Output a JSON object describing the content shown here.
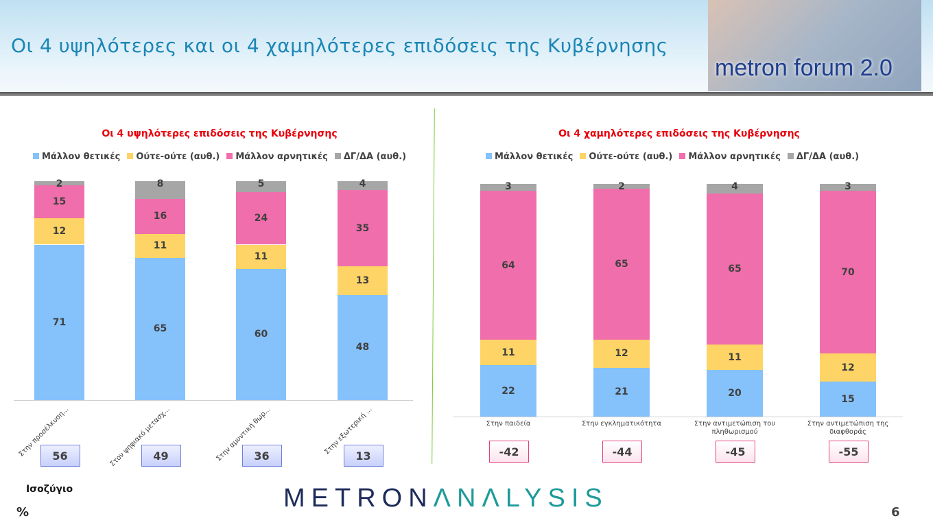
{
  "header": {
    "title": "Οι 4 υψηλότερες και οι 4 χαμηλότερες επιδόσεις της Κυβέρνησης",
    "logo_text": "metron forum 2.0"
  },
  "colors": {
    "positive": "#85c1fb",
    "neutral": "#fed466",
    "negative": "#f06eab",
    "dk": "#a6a6a6"
  },
  "chart_data": [
    {
      "type": "bar",
      "stacked": true,
      "title": "Οι 4 υψηλότερες επιδόσεις της Κυβέρνησης",
      "legend": [
        "Μάλλον θετικές",
        "Ούτε-ούτε  (αυθ.)",
        "Μάλλον αρνητικές",
        "ΔΓ/ΔΑ (αυθ.)"
      ],
      "categories": [
        "Στην προσέλκυση...",
        "Στον ψηφιακό μετασχ...",
        "Στην αμυντική θωρ...",
        "Στην εξωτερική ..."
      ],
      "series": [
        {
          "name": "Μάλλον θετικές",
          "values": [
            71,
            65,
            60,
            48
          ]
        },
        {
          "name": "Ούτε-ούτε  (αυθ.)",
          "values": [
            12,
            11,
            11,
            13
          ]
        },
        {
          "name": "Μάλλον αρνητικές",
          "values": [
            15,
            16,
            24,
            35
          ]
        },
        {
          "name": "ΔΓ/ΔΑ (αυθ.)",
          "values": [
            2,
            8,
            5,
            4
          ]
        }
      ],
      "balance": [
        "56",
        "49",
        "36",
        "13"
      ]
    },
    {
      "type": "bar",
      "stacked": true,
      "title": "Οι 4 χαμηλότερες επιδόσεις της Κυβέρνησης",
      "legend": [
        "Μάλλον θετικές",
        "Ούτε-ούτε  (αυθ.)",
        "Μάλλον αρνητικές",
        "ΔΓ/ΔΑ (αυθ.)"
      ],
      "categories": [
        "Στην παιδεία",
        "Στην εγκληματικότητα",
        "Στην αντιμετώπιση του πληθωρισμού",
        "Στην αντιμετώπιση της διαφθοράς"
      ],
      "series": [
        {
          "name": "Μάλλον θετικές",
          "values": [
            22,
            21,
            20,
            15
          ]
        },
        {
          "name": "Ούτε-ούτε  (αυθ.)",
          "values": [
            11,
            12,
            11,
            12
          ]
        },
        {
          "name": "Μάλλον αρνητικές",
          "values": [
            64,
            65,
            65,
            70
          ]
        },
        {
          "name": "ΔΓ/ΔΑ (αυθ.)",
          "values": [
            3,
            2,
            4,
            3
          ]
        }
      ],
      "balance": [
        "-42",
        "-44",
        "-45",
        "-55"
      ]
    }
  ],
  "footer": {
    "balance_label": "Ισοζύγιο",
    "unit": "%",
    "brand_a": "METRON",
    "brand_b": "ΛNΛLYSIS",
    "page": "6"
  }
}
